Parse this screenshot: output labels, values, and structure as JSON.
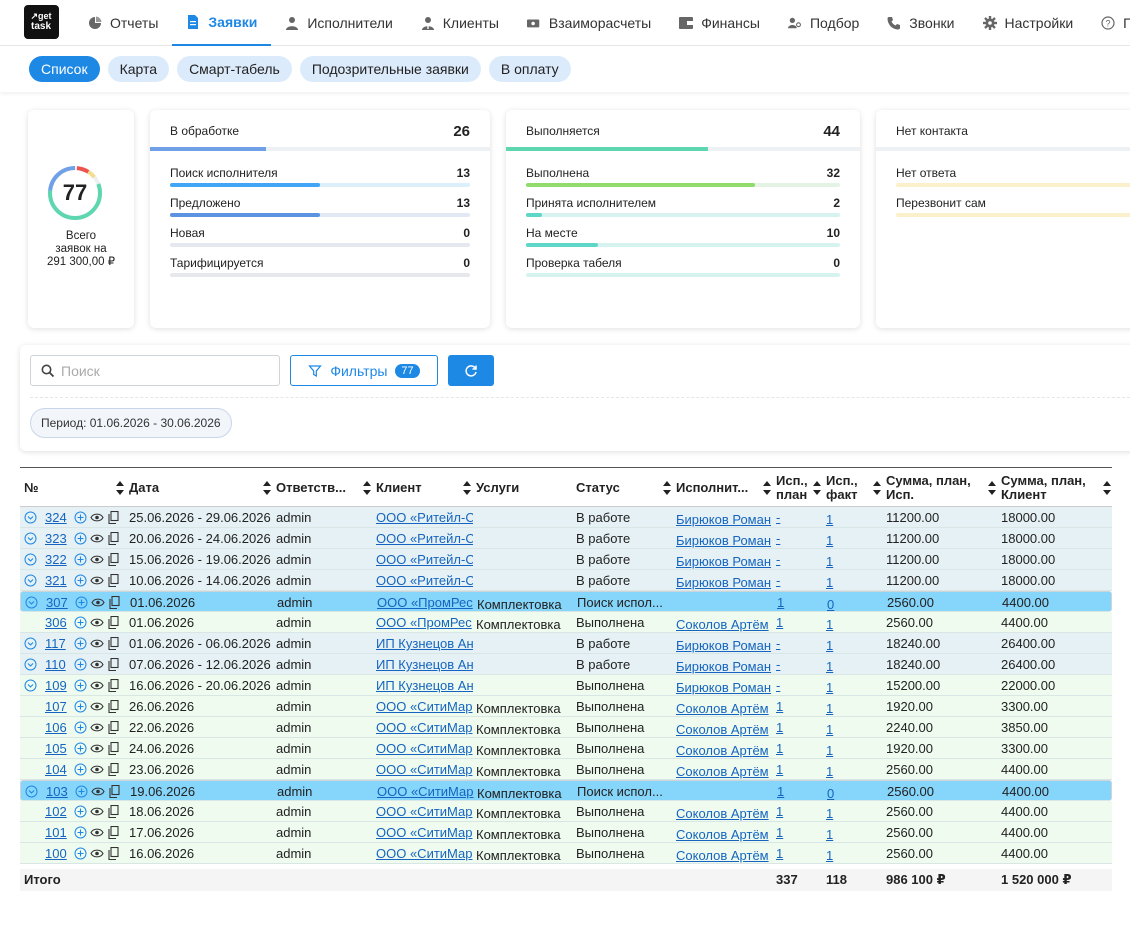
{
  "app": {
    "logo_text": "get task"
  },
  "nav": [
    {
      "label": "Отчеты",
      "icon": "pie-chart-icon"
    },
    {
      "label": "Заявки",
      "icon": "document-icon",
      "active": true
    },
    {
      "label": "Исполнители",
      "icon": "person-icon"
    },
    {
      "label": "Клиенты",
      "icon": "person-tie-icon"
    },
    {
      "label": "Взаиморасчеты",
      "icon": "money-icon"
    },
    {
      "label": "Финансы",
      "icon": "wallet-icon"
    },
    {
      "label": "Подбор",
      "icon": "people-search-icon"
    },
    {
      "label": "Звонки",
      "icon": "phone-icon"
    },
    {
      "label": "Настройки",
      "icon": "gear-icon"
    },
    {
      "label": "Помо",
      "icon": "help-icon"
    }
  ],
  "subtabs": [
    {
      "label": "Список",
      "active": true
    },
    {
      "label": "Карта"
    },
    {
      "label": "Смарт-табель"
    },
    {
      "label": "Подозрительные заявки"
    },
    {
      "label": "В оплату"
    }
  ],
  "summary": {
    "total": "77",
    "caption_line1": "Всего",
    "caption_line2": "заявок на",
    "caption_line3": "291 300,00 ₽"
  },
  "groups": [
    {
      "title": "В обработке",
      "count": "26",
      "color": "#6fa0e8",
      "fill": 0.34,
      "items": [
        {
          "label": "Поиск исполнителя",
          "value": "13",
          "fill": 0.5,
          "color": "#42a5f5",
          "bg": "#dbf0fa"
        },
        {
          "label": "Предложено",
          "value": "13",
          "fill": 0.5,
          "color": "#5c93e0",
          "bg": "#e2e8f4"
        },
        {
          "label": "Новая",
          "value": "0",
          "fill": 0,
          "color": "#9bb5d8",
          "bg": "#e6e8f0"
        },
        {
          "label": "Тарифицируется",
          "value": "0",
          "fill": 0,
          "color": "#9bb5d8",
          "bg": "#e6e8ec"
        }
      ]
    },
    {
      "title": "Выполняется",
      "count": "44",
      "color": "#5ed6b0",
      "fill": 0.57,
      "items": [
        {
          "label": "Выполнена",
          "value": "32",
          "fill": 0.73,
          "color": "#8fdc6c",
          "bg": "#e4f3e4"
        },
        {
          "label": "Принята исполнителем",
          "value": "2",
          "fill": 0.05,
          "color": "#5ed6c8",
          "bg": "#d7f3f0"
        },
        {
          "label": "На месте",
          "value": "10",
          "fill": 0.23,
          "color": "#5ed6c8",
          "bg": "#d7f3f0"
        },
        {
          "label": "Проверка табеля",
          "value": "0",
          "fill": 0,
          "color": "#5ed6c8",
          "bg": "#d7f3f0"
        }
      ]
    },
    {
      "title": "Нет контакта",
      "count": "",
      "color": "#f5dd90",
      "fill": 0,
      "items": [
        {
          "label": "Нет ответа",
          "value": "",
          "fill": 0,
          "color": "#f5dd90",
          "bg": "#fbf0cc"
        },
        {
          "label": "Перезвонит сам",
          "value": "",
          "fill": 0,
          "color": "#f5dd90",
          "bg": "#fbf0cc"
        }
      ]
    }
  ],
  "search": {
    "placeholder": "Поиск"
  },
  "filters": {
    "label": "Фильтры",
    "count": "77"
  },
  "period": "Период: 01.06.2026 - 30.06.2026",
  "columns": [
    "№",
    "Дата",
    "Ответств...",
    "Клиент",
    "Услуги",
    "Статус",
    "Исполнит...",
    "Исп., план",
    "Исп., факт",
    "Сумма, план, Исп.",
    "Сумма, план, Клиент"
  ],
  "rows": [
    {
      "state": "work",
      "expand": true,
      "num": "324",
      "date": "25.06.2026 - 29.06.2026",
      "resp": "admin",
      "client": "ООО «Ритейл-С",
      "service": "",
      "status": "В работе",
      "worker": "Бирюков Роман",
      "plan": "-",
      "fact": "1",
      "sum_worker": "11200.00",
      "sum_client": "18000.00"
    },
    {
      "state": "work",
      "expand": true,
      "num": "323",
      "date": "20.06.2026 - 24.06.2026",
      "resp": "admin",
      "client": "ООО «Ритейл-С",
      "service": "",
      "status": "В работе",
      "worker": "Бирюков Роман",
      "plan": "-",
      "fact": "1",
      "sum_worker": "11200.00",
      "sum_client": "18000.00"
    },
    {
      "state": "work",
      "expand": true,
      "num": "322",
      "date": "15.06.2026 - 19.06.2026",
      "resp": "admin",
      "client": "ООО «Ритейл-С",
      "service": "",
      "status": "В работе",
      "worker": "Бирюков Роман",
      "plan": "-",
      "fact": "1",
      "sum_worker": "11200.00",
      "sum_client": "18000.00"
    },
    {
      "state": "work",
      "expand": true,
      "num": "321",
      "date": "10.06.2026 - 14.06.2026",
      "resp": "admin",
      "client": "ООО «Ритейл-С",
      "service": "",
      "status": "В работе",
      "worker": "Бирюков Роман",
      "plan": "-",
      "fact": "1",
      "sum_worker": "11200.00",
      "sum_client": "18000.00"
    },
    {
      "state": "search",
      "expand": true,
      "num": "307",
      "date": "01.06.2026",
      "resp": "admin",
      "client": "ООО «ПромРес",
      "service": "Комплектовка",
      "status": "Поиск испол...",
      "worker": "",
      "plan": "1",
      "fact": "0",
      "sum_worker": "2560.00",
      "sum_client": "4400.00"
    },
    {
      "state": "done",
      "expand": false,
      "num": "306",
      "date": "01.06.2026",
      "resp": "admin",
      "client": "ООО «ПромРес",
      "service": "Комплектовка",
      "status": "Выполнена",
      "worker": "Соколов Артём",
      "plan": "1",
      "fact": "1",
      "sum_worker": "2560.00",
      "sum_client": "4400.00"
    },
    {
      "state": "work",
      "expand": true,
      "num": "117",
      "date": "01.06.2026 - 06.06.2026",
      "resp": "admin",
      "client": "ИП Кузнецов Ан",
      "service": "",
      "status": "В работе",
      "worker": "Бирюков Роман",
      "plan": "-",
      "fact": "1",
      "sum_worker": "18240.00",
      "sum_client": "26400.00"
    },
    {
      "state": "work",
      "expand": true,
      "num": "110",
      "date": "07.06.2026 - 12.06.2026",
      "resp": "admin",
      "client": "ИП Кузнецов Ан",
      "service": "",
      "status": "В работе",
      "worker": "Бирюков Роман",
      "plan": "-",
      "fact": "1",
      "sum_worker": "18240.00",
      "sum_client": "26400.00"
    },
    {
      "state": "done",
      "expand": true,
      "num": "109",
      "date": "16.06.2026 - 20.06.2026",
      "resp": "admin",
      "client": "ИП Кузнецов Ан",
      "service": "",
      "status": "Выполнена",
      "worker": "Бирюков Роман",
      "plan": "-",
      "fact": "1",
      "sum_worker": "15200.00",
      "sum_client": "22000.00"
    },
    {
      "state": "done",
      "expand": false,
      "num": "107",
      "date": "26.06.2026",
      "resp": "admin",
      "client": "ООО «СитиМар",
      "service": "Комплектовка",
      "status": "Выполнена",
      "worker": "Соколов Артём",
      "plan": "1",
      "fact": "1",
      "sum_worker": "1920.00",
      "sum_client": "3300.00"
    },
    {
      "state": "done",
      "expand": false,
      "num": "106",
      "date": "22.06.2026",
      "resp": "admin",
      "client": "ООО «СитиМар",
      "service": "Комплектовка",
      "status": "Выполнена",
      "worker": "Соколов Артём",
      "plan": "1",
      "fact": "1",
      "sum_worker": "2240.00",
      "sum_client": "3850.00"
    },
    {
      "state": "done",
      "expand": false,
      "num": "105",
      "date": "24.06.2026",
      "resp": "admin",
      "client": "ООО «СитиМар",
      "service": "Комплектовка",
      "status": "Выполнена",
      "worker": "Соколов Артём",
      "plan": "1",
      "fact": "1",
      "sum_worker": "1920.00",
      "sum_client": "3300.00"
    },
    {
      "state": "done",
      "expand": false,
      "num": "104",
      "date": "23.06.2026",
      "resp": "admin",
      "client": "ООО «СитиМар",
      "service": "Комплектовка",
      "status": "Выполнена",
      "worker": "Соколов Артём",
      "plan": "1",
      "fact": "1",
      "sum_worker": "2560.00",
      "sum_client": "4400.00"
    },
    {
      "state": "search",
      "expand": true,
      "num": "103",
      "date": "19.06.2026",
      "resp": "admin",
      "client": "ООО «СитиМар",
      "service": "Комплектовка",
      "status": "Поиск испол...",
      "worker": "",
      "plan": "1",
      "fact": "0",
      "sum_worker": "2560.00",
      "sum_client": "4400.00"
    },
    {
      "state": "done",
      "expand": false,
      "num": "102",
      "date": "18.06.2026",
      "resp": "admin",
      "client": "ООО «СитиМар",
      "service": "Комплектовка",
      "status": "Выполнена",
      "worker": "Соколов Артём",
      "plan": "1",
      "fact": "1",
      "sum_worker": "2560.00",
      "sum_client": "4400.00"
    },
    {
      "state": "done",
      "expand": false,
      "num": "101",
      "date": "17.06.2026",
      "resp": "admin",
      "client": "ООО «СитиМар",
      "service": "Комплектовка",
      "status": "Выполнена",
      "worker": "Соколов Артём",
      "plan": "1",
      "fact": "1",
      "sum_worker": "2560.00",
      "sum_client": "4400.00"
    },
    {
      "state": "done",
      "expand": false,
      "num": "100",
      "date": "16.06.2026",
      "resp": "admin",
      "client": "ООО «СитиМар",
      "service": "Комплектовка",
      "status": "Выполнена",
      "worker": "Соколов Артём",
      "plan": "1",
      "fact": "1",
      "sum_worker": "2560.00",
      "sum_client": "4400.00"
    }
  ],
  "totals": {
    "label": "Итого",
    "plan": "337",
    "fact": "118",
    "sum_worker": "986 100 ₽",
    "sum_client": "1 520 000 ₽"
  },
  "colors": {
    "accent": "#1e88e5",
    "row_work": "#e6f1f5",
    "row_done": "#effbef",
    "row_search": "#86d5fa"
  }
}
